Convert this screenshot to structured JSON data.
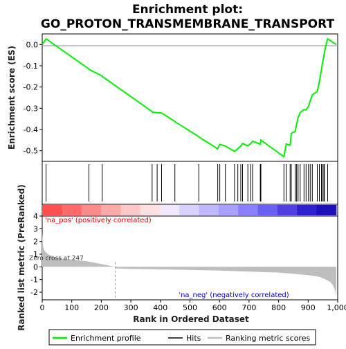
{
  "chart_data": {
    "type": "line",
    "title_line1": "Enrichment plot:",
    "title_line2": "GO_PROTON_TRANSMEMBRANE_TRANSPORT",
    "es_ylabel": "Enrichment score (ES)",
    "metric_ylabel": "Ranked list metric (PreRanked)",
    "xlabel": "Rank in Ordered Dataset",
    "xlim": [
      0,
      1000
    ],
    "es_ylim": [
      -0.55,
      0.05
    ],
    "metric_ylim": [
      -2.6,
      4.0
    ],
    "x_ticks": [
      "0",
      "100",
      "200",
      "300",
      "400",
      "500",
      "600",
      "700",
      "800",
      "900",
      "1,000"
    ],
    "es_ticks": [
      "0.0",
      "-0.1",
      "-0.2",
      "-0.3",
      "-0.4",
      "-0.5"
    ],
    "es_tick_values": [
      0.0,
      -0.1,
      -0.2,
      -0.3,
      -0.4,
      -0.5
    ],
    "metric_ticks": [
      "4",
      "3",
      "2",
      "1",
      "0",
      "-1",
      "-2"
    ],
    "metric_tick_values": [
      4,
      3,
      2,
      1,
      0,
      -1,
      -2
    ],
    "zero_cross_label": "Zero cross at 247",
    "zero_cross": 247,
    "pos_label": "'na_pos' (positively correlated)",
    "neg_label": "'na_neg' (negatively correlated)",
    "hit_ranks": [
      13,
      158,
      203,
      372,
      389,
      404,
      449,
      530,
      594,
      601,
      620,
      651,
      662,
      672,
      678,
      696,
      706,
      712,
      738,
      740,
      818,
      826,
      839,
      843,
      856,
      861,
      866,
      873,
      886,
      893,
      901,
      907,
      914,
      931,
      938,
      945,
      948,
      953,
      955,
      966
    ],
    "es_curve": [
      [
        0,
        0
      ],
      [
        13,
        0.027
      ],
      [
        158,
        -0.115
      ],
      [
        159,
        -0.118
      ],
      [
        203,
        -0.148
      ],
      [
        204,
        -0.151
      ],
      [
        372,
        -0.316
      ],
      [
        373,
        -0.319
      ],
      [
        389,
        -0.321
      ],
      [
        404,
        -0.322
      ],
      [
        449,
        -0.362
      ],
      [
        450,
        -0.364
      ],
      [
        530,
        -0.434
      ],
      [
        531,
        -0.436
      ],
      [
        594,
        -0.491
      ],
      [
        601,
        -0.47
      ],
      [
        620,
        -0.478
      ],
      [
        651,
        -0.503
      ],
      [
        662,
        -0.49
      ],
      [
        672,
        -0.478
      ],
      [
        678,
        -0.466
      ],
      [
        696,
        -0.477
      ],
      [
        706,
        -0.466
      ],
      [
        712,
        -0.455
      ],
      [
        738,
        -0.469
      ],
      [
        740,
        -0.45
      ],
      [
        818,
        -0.528
      ],
      [
        826,
        -0.468
      ],
      [
        839,
        -0.474
      ],
      [
        843,
        -0.418
      ],
      [
        856,
        -0.409
      ],
      [
        861,
        -0.375
      ],
      [
        866,
        -0.344
      ],
      [
        873,
        -0.32
      ],
      [
        886,
        -0.306
      ],
      [
        893,
        -0.308
      ],
      [
        901,
        -0.292
      ],
      [
        907,
        -0.265
      ],
      [
        914,
        -0.237
      ],
      [
        931,
        -0.221
      ],
      [
        938,
        -0.175
      ],
      [
        945,
        -0.12
      ],
      [
        948,
        -0.09
      ],
      [
        953,
        -0.058
      ],
      [
        955,
        -0.038
      ],
      [
        960,
        -0.003
      ],
      [
        966,
        0.027
      ],
      [
        995,
        0
      ]
    ],
    "metric_curve": [
      [
        0,
        2.6
      ],
      [
        3,
        1.6
      ],
      [
        8,
        1.25
      ],
      [
        20,
        1.0
      ],
      [
        40,
        0.75
      ],
      [
        80,
        0.6
      ],
      [
        150,
        0.45
      ],
      [
        247,
        0.0
      ],
      [
        248,
        -0.12
      ],
      [
        300,
        -0.17
      ],
      [
        400,
        -0.2
      ],
      [
        500,
        -0.24
      ],
      [
        600,
        -0.3
      ],
      [
        700,
        -0.38
      ],
      [
        800,
        -0.45
      ],
      [
        850,
        -0.55
      ],
      [
        900,
        -0.65
      ],
      [
        940,
        -0.8
      ],
      [
        960,
        -1.0
      ],
      [
        975,
        -1.2
      ],
      [
        985,
        -1.5
      ],
      [
        992,
        -1.9
      ],
      [
        995,
        -2.3
      ]
    ],
    "heat_bar_colors": [
      "#ff5050",
      "#ff6a6a",
      "#ff8a8a",
      "#ffaaaa",
      "#ffc8c8",
      "#ffe0e0",
      "#f0e8ff",
      "#d8d0ff",
      "#c0b8ff",
      "#a8a0ff",
      "#8a80ff",
      "#6a60f0",
      "#5040e0",
      "#3020cc",
      "#1e10b4"
    ],
    "colors": {
      "enrichment_line": "#00ee00",
      "hits": "#000000",
      "metric_fill": "#bebebe",
      "pos_label": "#d00000",
      "neg_label": "#0000c8"
    },
    "legend": {
      "enrichment": "Enrichment profile",
      "hits": "Hits",
      "metric": "Ranking metric scores"
    }
  }
}
